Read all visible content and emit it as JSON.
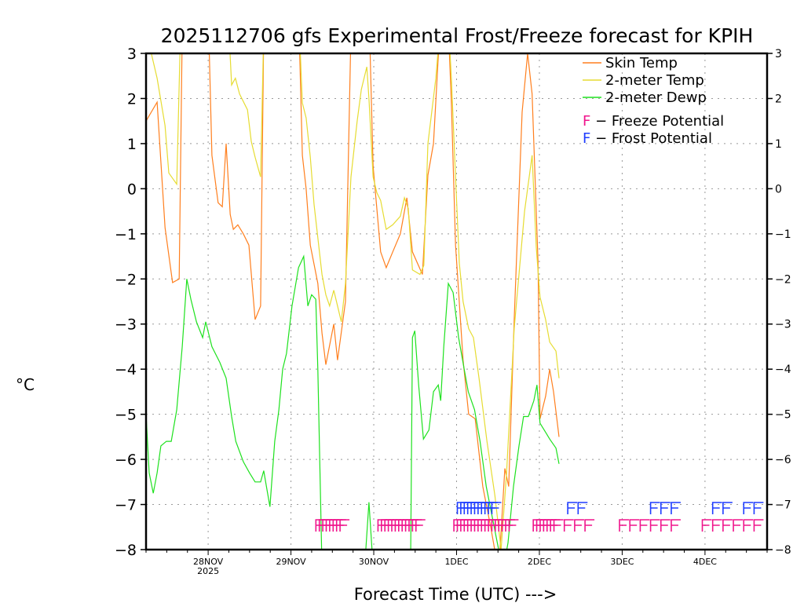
{
  "chart_data": {
    "type": "line",
    "title": "2025112706 gfs Experimental Frost/Freeze forecast for KPIH",
    "xlabel": "Forecast Time (UTC) --->",
    "ylabel": "°C",
    "x_units": "hours since 27NOV2025 06Z",
    "xlim": [
      0,
      180
    ],
    "ylim": [
      -8,
      3
    ],
    "yticks": [
      -8,
      -7,
      -6,
      -5,
      -4,
      -3,
      -2,
      -1,
      0,
      1,
      2,
      3
    ],
    "xticks": [
      {
        "hour": 18,
        "label": "28NOV",
        "sublabel": "2025"
      },
      {
        "hour": 42,
        "label": "29NOV"
      },
      {
        "hour": 66,
        "label": "30NOV"
      },
      {
        "hour": 90,
        "label": "1DEC"
      },
      {
        "hour": 114,
        "label": "2DEC"
      },
      {
        "hour": 138,
        "label": "3DEC"
      },
      {
        "hour": 162,
        "label": "4DEC"
      }
    ],
    "grid": true,
    "legend_position": "top-left",
    "series": [
      {
        "name": "Skin Temp",
        "color": "#ff7f1e",
        "x": [
          0,
          3.2,
          5.5,
          7.7,
          9.6,
          10.5,
          12.3,
          18,
          19.1,
          20.9,
          22.1,
          23.2,
          24.4,
          25.3,
          26.6,
          28.2,
          29.8,
          31.6,
          33.2,
          34.1,
          44.2,
          45.3,
          46.4,
          47.6,
          49.8,
          51.0,
          52.1,
          54.4,
          55.5,
          57.8,
          59.4,
          64.6,
          65.8,
          68.0,
          69.6,
          71.5,
          73.7,
          75.6,
          77.2,
          80.1,
          81.7,
          83.3,
          85.1,
          87.4,
          88.5,
          89.7,
          91.9,
          93.5,
          95.4,
          97.6,
          99.9,
          102.2,
          104.0,
          105.1,
          106.7,
          109.0,
          110.6,
          111.9,
          113.6,
          114.2,
          115.8,
          117.0,
          118.1,
          119.7
        ],
        "y": [
          1.5,
          1.92,
          -0.86,
          -2.08,
          -2.0,
          3.5,
          4,
          4,
          0.74,
          -0.31,
          -0.4,
          1.0,
          -0.57,
          -0.9,
          -0.8,
          -1.0,
          -1.25,
          -2.9,
          -2.6,
          3.5,
          4,
          0.74,
          0.0,
          -1.25,
          -2.1,
          -3.2,
          -3.9,
          -3.0,
          -3.8,
          -2.5,
          3.5,
          4,
          0.5,
          -1.4,
          -1.75,
          -1.4,
          -1.0,
          -0.2,
          -1.4,
          -1.9,
          0.3,
          1.0,
          3.5,
          4,
          1.9,
          -1.25,
          -3.8,
          -5.0,
          -5.1,
          -6.6,
          -7.5,
          -8.5,
          -6.2,
          -6.6,
          -2.9,
          1.7,
          3.0,
          2.1,
          -1.6,
          -5.1,
          -4.6,
          -4.0,
          -4.5,
          -5.5
        ]
      },
      {
        "name": "2-meter Temp",
        "color": "#e6dc32",
        "x": [
          0,
          3.2,
          5.5,
          6.6,
          8.9,
          10.0,
          11,
          23.7,
          24.8,
          25.9,
          27.1,
          29.4,
          30.5,
          31.6,
          33.2,
          34.1,
          44.2,
          45.3,
          46.4,
          47.6,
          48.7,
          51.0,
          52.1,
          53.2,
          54.4,
          55.5,
          56.6,
          57.8,
          59.4,
          61.2,
          62.4,
          64.0,
          64.6,
          65.8,
          66.9,
          68.0,
          69.6,
          71.5,
          73.7,
          74.9,
          76.0,
          77.2,
          79.4,
          80.5,
          81.7,
          84.0,
          85.1,
          87.4,
          88.5,
          89.7,
          90.8,
          91.9,
          93.5,
          94.9,
          96.5,
          98.8,
          101.1,
          102.9,
          104.5,
          106.7,
          109.7,
          111.9,
          113.1,
          114.2,
          115.8,
          117.0,
          118.8,
          119.7
        ],
        "y": [
          3.5,
          2.45,
          1.4,
          0.35,
          0.1,
          3.5,
          4,
          4,
          2.3,
          2.45,
          2.1,
          1.75,
          1.05,
          0.7,
          0.26,
          3.5,
          4,
          1.9,
          1.57,
          0.7,
          -0.35,
          -1.9,
          -2.35,
          -2.6,
          -2.25,
          -2.6,
          -2.95,
          -2.1,
          0.26,
          1.5,
          2.2,
          2.7,
          2.0,
          0.26,
          -0.09,
          -0.26,
          -0.9,
          -0.8,
          -0.61,
          -0.2,
          -0.44,
          -1.8,
          -1.9,
          -1.7,
          1.0,
          2.45,
          3.5,
          4,
          2.45,
          0.26,
          -1.65,
          -2.5,
          -3.1,
          -3.3,
          -4.2,
          -5.6,
          -6.8,
          -8.0,
          -6.3,
          -3.1,
          -0.5,
          0.74,
          -1.3,
          -2.4,
          -2.9,
          -3.4,
          -3.6,
          -4.2
        ]
      },
      {
        "name": "2-meter Dewp",
        "color": "#1ee11e",
        "x": [
          0,
          0.9,
          2.1,
          3.2,
          4.3,
          5.9,
          7.3,
          8.9,
          10.5,
          11.8,
          13.0,
          14.6,
          16.4,
          17.3,
          19.1,
          21.4,
          23.2,
          24.8,
          26.0,
          28.2,
          30.0,
          31.6,
          33.2,
          34.1,
          35.0,
          35.9,
          37.3,
          38.5,
          39.6,
          40.7,
          42.3,
          44.2,
          45.7,
          46.9,
          48.0,
          49.2,
          49.8,
          51.0,
          63.7,
          64.6,
          65.5,
          66.4,
          76.7,
          77.2,
          77.9,
          79.0,
          80.4,
          82.0,
          83.3,
          84.7,
          85.4,
          86.3,
          87.6,
          89.0,
          90.6,
          92.2,
          93.4,
          95.2,
          96.8,
          98.6,
          100.4,
          102.2,
          103.6,
          104.9,
          106.5,
          108.1,
          109.4,
          110.8,
          112.4,
          113.3,
          114.2,
          115.8,
          117.0,
          118.8,
          119.7
        ],
        "y": [
          -5.0,
          -6.3,
          -6.75,
          -6.3,
          -5.7,
          -5.6,
          -5.6,
          -4.9,
          -3.5,
          -2.0,
          -2.45,
          -2.95,
          -3.3,
          -2.95,
          -3.5,
          -3.85,
          -4.2,
          -5.05,
          -5.6,
          -6.05,
          -6.3,
          -6.5,
          -6.5,
          -6.25,
          -6.65,
          -7.05,
          -5.6,
          -4.9,
          -4.0,
          -3.65,
          -2.6,
          -1.75,
          -1.5,
          -2.6,
          -2.35,
          -2.45,
          -4.0,
          -8.4,
          -8.0,
          -6.95,
          -8.0,
          -8.4,
          -8.0,
          -3.3,
          -3.15,
          -4.35,
          -5.55,
          -5.35,
          -4.5,
          -4.35,
          -4.7,
          -3.5,
          -2.1,
          -2.3,
          -3.3,
          -4.0,
          -4.5,
          -4.9,
          -5.6,
          -6.6,
          -7.3,
          -8.0,
          -8.4,
          -7.85,
          -6.6,
          -5.7,
          -5.05,
          -5.05,
          -4.7,
          -4.35,
          -5.2,
          -5.4,
          -5.55,
          -5.75,
          -6.1
        ]
      }
    ],
    "markers": {
      "freeze": {
        "label": "F - Freeze Potential",
        "glyph": "F",
        "color": "#f0148c",
        "hours": [
          49,
          50,
          51,
          52,
          53,
          54,
          55,
          56,
          67,
          68,
          69,
          70,
          71,
          72,
          73,
          74,
          75,
          76,
          77,
          78,
          89,
          90,
          91,
          92,
          93,
          94,
          95,
          96,
          97,
          98,
          99,
          100,
          101,
          102,
          103,
          104,
          105,
          112,
          113,
          114,
          115,
          116,
          117,
          118,
          121,
          124,
          127,
          137,
          140,
          143,
          146,
          149,
          152,
          161,
          164,
          167,
          170,
          173,
          176
        ]
      },
      "frost": {
        "label": "F - Frost Potential",
        "glyph": "F",
        "color": "#1e3cff",
        "hours": [
          90,
          91,
          92,
          93,
          94,
          95,
          96,
          97,
          98,
          99,
          100,
          122,
          125,
          146,
          149,
          152,
          164,
          167,
          173,
          176
        ]
      }
    }
  }
}
